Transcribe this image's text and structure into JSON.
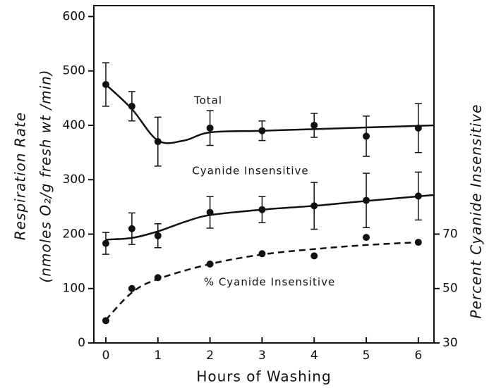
{
  "chart_data": {
    "type": "scatter",
    "x_label": "Hours of Washing",
    "y_label": [
      "Respiration Rate",
      "(nmoles O₂/g fresh wt /min)"
    ],
    "y2_label": "Percent Cyanide Insensitive",
    "xlim": [
      -0.23,
      6.3
    ],
    "xticks": [
      0,
      1,
      2,
      3,
      4,
      5,
      6
    ],
    "ylim": [
      0,
      620
    ],
    "yticks": [
      0,
      100,
      200,
      300,
      400,
      500,
      600
    ],
    "y2lim": [
      30,
      154
    ],
    "y2ticks": [
      30,
      50,
      70
    ],
    "series": [
      {
        "name": "Total",
        "color": "#111111",
        "x": [
          0,
          0.5,
          1,
          2,
          3,
          4,
          5,
          6
        ],
        "values": [
          475,
          435,
          370,
          395,
          390,
          400,
          380,
          395
        ],
        "errors": [
          40,
          27,
          45,
          32,
          18,
          22,
          37,
          45
        ],
        "curve": {
          "x": [
            0,
            0.5,
            1,
            1.5,
            2,
            3,
            4,
            5,
            6.3
          ],
          "values": [
            475,
            430,
            372,
            372,
            387,
            390,
            393,
            396,
            400
          ],
          "dashed": false
        }
      },
      {
        "name": "Cyanide Insensitive",
        "color": "#111111",
        "x": [
          0,
          0.5,
          1,
          2,
          3,
          4,
          5,
          6
        ],
        "values": [
          183,
          210,
          197,
          240,
          245,
          252,
          262,
          270
        ],
        "errors": [
          20,
          29,
          22,
          29,
          24,
          43,
          50,
          44
        ],
        "curve": {
          "x": [
            0,
            0.5,
            1,
            1.5,
            2,
            3,
            4,
            5,
            6.3
          ],
          "values": [
            190,
            193,
            205,
            222,
            235,
            245,
            252,
            261,
            272
          ],
          "dashed": false
        }
      },
      {
        "name": "% Cyanide Insensitive",
        "color": "#111111",
        "axis": "y2",
        "x": [
          0,
          0.5,
          1,
          2,
          3,
          4,
          5,
          6
        ],
        "values": [
          38.2,
          50,
          54,
          59,
          62.8,
          62,
          68.8,
          67
        ],
        "curve": {
          "x": [
            0,
            0.5,
            1,
            2,
            3,
            4,
            5,
            6
          ],
          "values": [
            38.5,
            48.5,
            53.5,
            59,
            62.5,
            64.5,
            66,
            67
          ],
          "dashed": true
        }
      }
    ]
  }
}
